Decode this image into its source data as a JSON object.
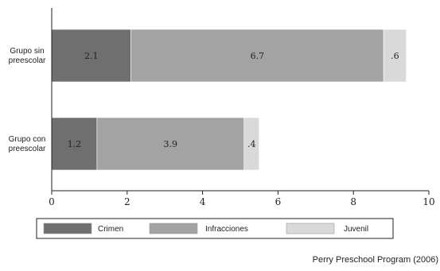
{
  "chart_data": {
    "type": "bar",
    "orientation": "horizontal",
    "stacked": true,
    "categories": [
      "Grupo sin\npreescolar",
      "Grupo con\npreescolar"
    ],
    "series": [
      {
        "name": "Crimen",
        "values": [
          2.1,
          1.2
        ],
        "labels": [
          "2.1",
          "1.2"
        ],
        "color": "#6f6f6f"
      },
      {
        "name": "Infracciones",
        "values": [
          6.7,
          3.9
        ],
        "labels": [
          "6.7",
          "3.9"
        ],
        "color": "#a3a3a3"
      },
      {
        "name": "Juvenil",
        "values": [
          0.6,
          0.4
        ],
        "labels": [
          ".6",
          ".4"
        ],
        "color": "#d9d9d9"
      }
    ],
    "xlim": [
      0,
      10
    ],
    "xticks": [
      0,
      2,
      4,
      6,
      8,
      10
    ],
    "xtick_labels": [
      "0",
      "2",
      "4",
      "6",
      "8",
      "10"
    ],
    "grid": false,
    "legend_position": "bottom",
    "source": "Perry Preschool Program (2006)"
  }
}
